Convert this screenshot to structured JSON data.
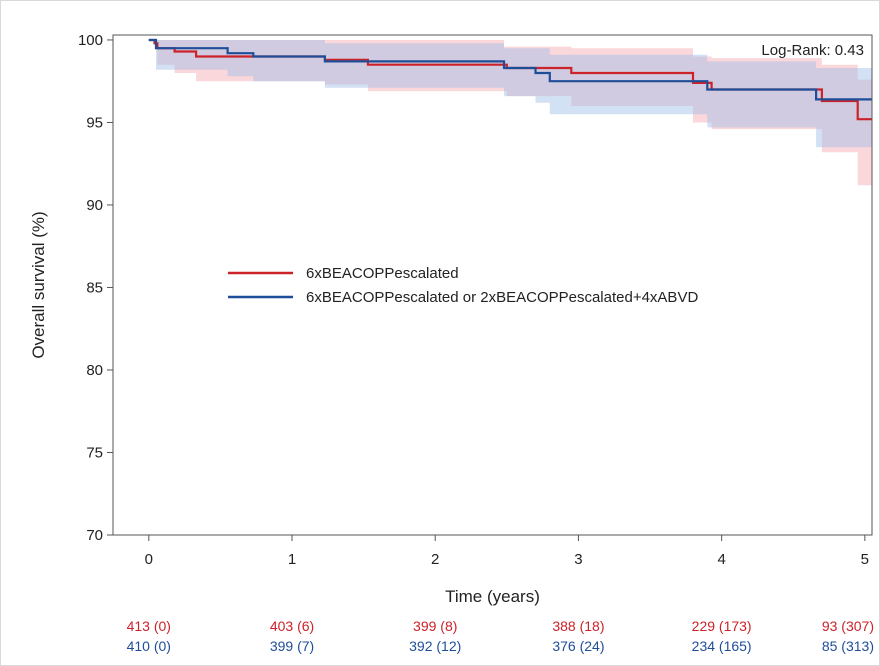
{
  "chart_data": {
    "type": "line",
    "xlabel": "Time (years)",
    "ylabel": "Overall survival (%)",
    "xlim": [
      -0.25,
      5.05
    ],
    "ylim": [
      70,
      100.3
    ],
    "xticks": [
      0,
      1,
      2,
      3,
      4,
      5
    ],
    "yticks": [
      70,
      75,
      80,
      85,
      90,
      95,
      100
    ],
    "grid": false,
    "legend_placement": "center-left",
    "annotation": "Log-Rank: 0.43",
    "series": [
      {
        "name": "6xBEACOPPescalated",
        "color": "#cc2229",
        "band_color": "#f4a6ad",
        "steps": [
          [
            0,
            100
          ],
          [
            0.04,
            99.8
          ],
          [
            0.06,
            99.5
          ],
          [
            0.18,
            99.3
          ],
          [
            0.33,
            99.0
          ],
          [
            1.2,
            99.0
          ],
          [
            1.23,
            98.8
          ],
          [
            1.5,
            98.8
          ],
          [
            1.53,
            98.5
          ],
          [
            2.48,
            98.5
          ],
          [
            2.5,
            98.3
          ],
          [
            2.93,
            98.3
          ],
          [
            2.95,
            98.0
          ],
          [
            3.78,
            98.0
          ],
          [
            3.8,
            97.4
          ],
          [
            3.9,
            97.4
          ],
          [
            3.93,
            97.0
          ],
          [
            4.68,
            97.0
          ],
          [
            4.7,
            96.3
          ],
          [
            4.93,
            96.3
          ],
          [
            4.95,
            95.2
          ],
          [
            5.05,
            95.2
          ]
        ],
        "upper": [
          [
            0,
            100
          ],
          [
            0.06,
            100
          ],
          [
            1.5,
            100
          ],
          [
            2.48,
            99.6
          ],
          [
            2.95,
            99.5
          ],
          [
            3.8,
            99.0
          ],
          [
            3.93,
            98.9
          ],
          [
            4.7,
            98.5
          ],
          [
            4.95,
            97.6
          ],
          [
            5.05,
            97.6
          ]
        ],
        "lower": [
          [
            0,
            100
          ],
          [
            0.06,
            98.5
          ],
          [
            0.18,
            98.0
          ],
          [
            0.33,
            97.5
          ],
          [
            1.23,
            97.3
          ],
          [
            1.53,
            96.9
          ],
          [
            2.5,
            96.6
          ],
          [
            2.95,
            96.0
          ],
          [
            3.8,
            95.0
          ],
          [
            3.93,
            94.6
          ],
          [
            4.7,
            93.2
          ],
          [
            4.95,
            91.2
          ],
          [
            5.05,
            91.2
          ]
        ],
        "risk_table": [
          "413 (0)",
          "403 (6)",
          "399 (8)",
          "388 (18)",
          "229 (173)",
          "93 (307)"
        ]
      },
      {
        "name": "6xBEACOPPescalated or 2xBEACOPPescalated+4xABVD",
        "color": "#1f4e99",
        "band_color": "#9dbde6",
        "steps": [
          [
            0,
            100
          ],
          [
            0.05,
            99.5
          ],
          [
            0.52,
            99.5
          ],
          [
            0.55,
            99.2
          ],
          [
            0.7,
            99.2
          ],
          [
            0.73,
            99.0
          ],
          [
            1.2,
            99.0
          ],
          [
            1.23,
            98.7
          ],
          [
            2.45,
            98.7
          ],
          [
            2.48,
            98.3
          ],
          [
            2.68,
            98.3
          ],
          [
            2.7,
            98.0
          ],
          [
            2.78,
            98.0
          ],
          [
            2.8,
            97.5
          ],
          [
            3.88,
            97.5
          ],
          [
            3.9,
            97.0
          ],
          [
            4.63,
            97.0
          ],
          [
            4.66,
            96.4
          ],
          [
            5.05,
            96.4
          ]
        ],
        "upper": [
          [
            0,
            100
          ],
          [
            0.55,
            100
          ],
          [
            1.23,
            99.8
          ],
          [
            2.48,
            99.5
          ],
          [
            2.8,
            99.1
          ],
          [
            3.9,
            98.7
          ],
          [
            4.66,
            98.3
          ],
          [
            5.05,
            98.3
          ]
        ],
        "lower": [
          [
            0,
            100
          ],
          [
            0.05,
            98.2
          ],
          [
            0.55,
            97.8
          ],
          [
            0.73,
            97.5
          ],
          [
            1.23,
            97.1
          ],
          [
            2.48,
            96.6
          ],
          [
            2.7,
            96.2
          ],
          [
            2.8,
            95.5
          ],
          [
            3.9,
            94.7
          ],
          [
            4.66,
            93.5
          ],
          [
            5.05,
            93.5
          ]
        ],
        "risk_table": [
          "410 (0)",
          "399 (7)",
          "392 (12)",
          "376 (24)",
          "234 (165)",
          "85 (313)"
        ]
      }
    ]
  }
}
